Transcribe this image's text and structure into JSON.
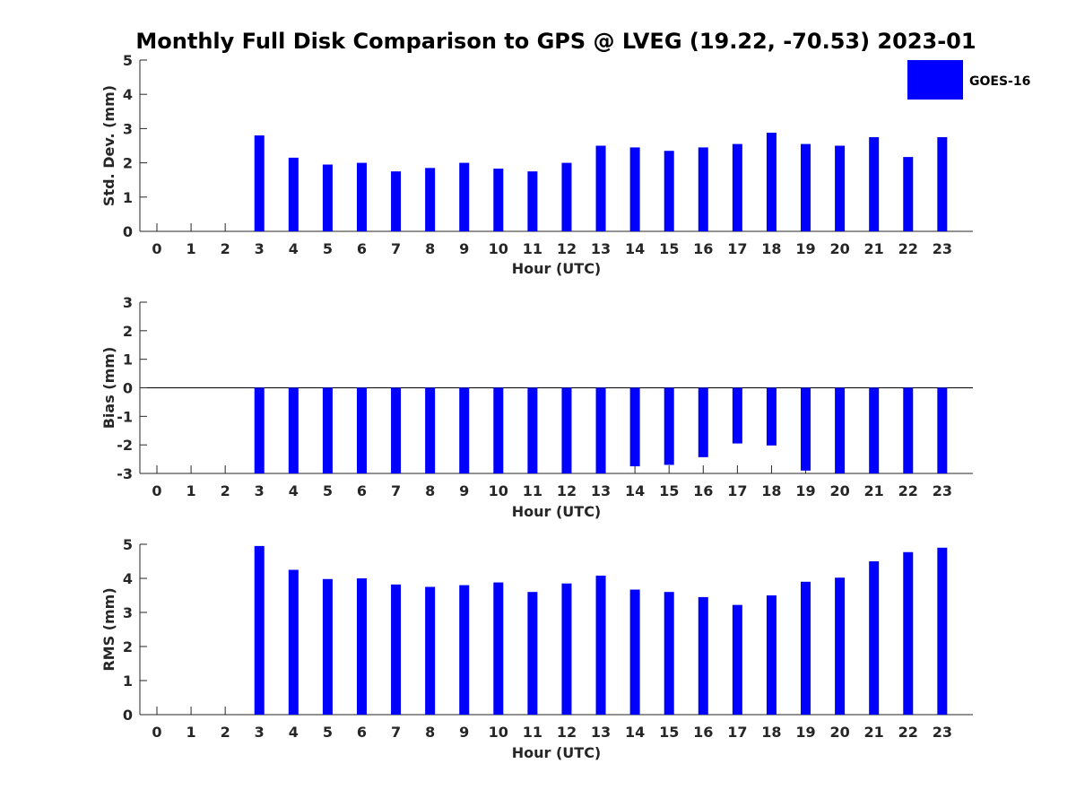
{
  "title": "Monthly Full Disk Comparison to GPS @ LVEG (19.22, -70.53) 2023-01",
  "legend": {
    "label": "GOES-16",
    "color": "#0000ff"
  },
  "chart_data": [
    {
      "type": "bar",
      "ylabel": "Std. Dev. (mm)",
      "xlabel": "Hour (UTC)",
      "ylim": [
        0,
        5
      ],
      "yticks": [
        "0",
        "1",
        "2",
        "3",
        "4",
        "5"
      ],
      "categories": [
        "0",
        "1",
        "2",
        "3",
        "4",
        "5",
        "6",
        "7",
        "8",
        "9",
        "10",
        "11",
        "12",
        "13",
        "14",
        "15",
        "16",
        "17",
        "18",
        "19",
        "20",
        "21",
        "22",
        "23"
      ],
      "series": [
        {
          "name": "GOES-16",
          "color": "#0000ff",
          "values": [
            null,
            null,
            null,
            2.8,
            2.15,
            1.95,
            2.0,
            1.75,
            1.85,
            2.0,
            1.83,
            1.75,
            2.0,
            2.5,
            2.45,
            2.35,
            2.45,
            2.55,
            2.88,
            2.55,
            2.5,
            2.75,
            2.17,
            2.75
          ]
        }
      ]
    },
    {
      "type": "bar",
      "ylabel": "Bias (mm)",
      "xlabel": "Hour (UTC)",
      "ylim": [
        -3,
        3
      ],
      "yticks": [
        "-3",
        "-2",
        "-1",
        "0",
        "1",
        "2",
        "3"
      ],
      "categories": [
        "0",
        "1",
        "2",
        "3",
        "4",
        "5",
        "6",
        "7",
        "8",
        "9",
        "10",
        "11",
        "12",
        "13",
        "14",
        "15",
        "16",
        "17",
        "18",
        "19",
        "20",
        "21",
        "22",
        "23"
      ],
      "series": [
        {
          "name": "GOES-16",
          "color": "#0000ff",
          "values": [
            null,
            null,
            null,
            -3.0,
            -3.0,
            -3.0,
            -3.0,
            -3.0,
            -3.0,
            -3.0,
            -3.0,
            -3.0,
            -3.0,
            -3.0,
            -2.75,
            -2.7,
            -2.43,
            -1.95,
            -2.02,
            -2.9,
            -3.0,
            -3.0,
            -3.0,
            -3.0
          ]
        }
      ]
    },
    {
      "type": "bar",
      "ylabel": "RMS (mm)",
      "xlabel": "Hour (UTC)",
      "ylim": [
        0,
        5
      ],
      "yticks": [
        "0",
        "1",
        "2",
        "3",
        "4",
        "5"
      ],
      "categories": [
        "0",
        "1",
        "2",
        "3",
        "4",
        "5",
        "6",
        "7",
        "8",
        "9",
        "10",
        "11",
        "12",
        "13",
        "14",
        "15",
        "16",
        "17",
        "18",
        "19",
        "20",
        "21",
        "22",
        "23"
      ],
      "series": [
        {
          "name": "GOES-16",
          "color": "#0000ff",
          "values": [
            null,
            null,
            null,
            4.95,
            4.25,
            3.98,
            4.0,
            3.82,
            3.75,
            3.8,
            3.88,
            3.6,
            3.85,
            4.08,
            3.67,
            3.6,
            3.45,
            3.22,
            3.5,
            3.9,
            4.02,
            4.5,
            4.77,
            4.9
          ]
        }
      ]
    }
  ]
}
